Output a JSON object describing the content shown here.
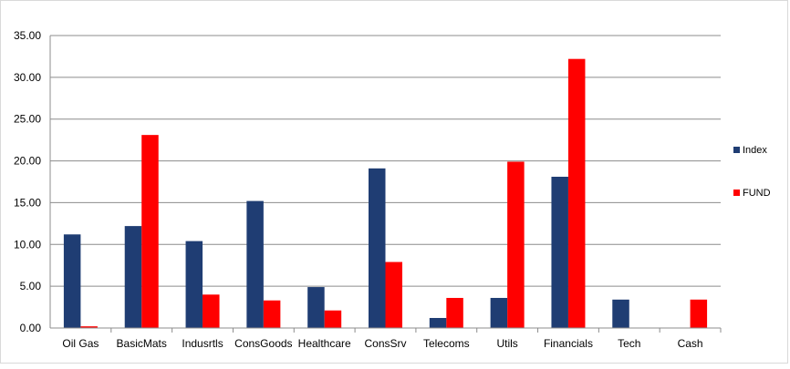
{
  "chart_data": {
    "type": "bar",
    "title": "",
    "xlabel": "",
    "ylabel": "",
    "categories": [
      "Oil Gas",
      "BasicMats",
      "Indusrtls",
      "ConsGoods",
      "Healthcare",
      "ConsSrv",
      "Telecoms",
      "Utils",
      "Financials",
      "Tech",
      "Cash"
    ],
    "series": [
      {
        "name": "Index",
        "color": "#1F3D73",
        "values": [
          11.2,
          12.2,
          10.4,
          15.2,
          4.9,
          19.1,
          1.2,
          3.6,
          18.1,
          3.4,
          0
        ]
      },
      {
        "name": "FUND",
        "color": "#FF0000",
        "values": [
          0.2,
          23.1,
          4.0,
          3.3,
          2.1,
          7.9,
          3.6,
          19.9,
          32.2,
          0,
          3.4
        ]
      }
    ],
    "ylim": [
      0,
      35
    ],
    "ytick_labels": [
      "0.00",
      "5.00",
      "10.00",
      "15.00",
      "20.00",
      "25.00",
      "30.00",
      "35.00"
    ],
    "grid": true,
    "legend_position": "right"
  }
}
